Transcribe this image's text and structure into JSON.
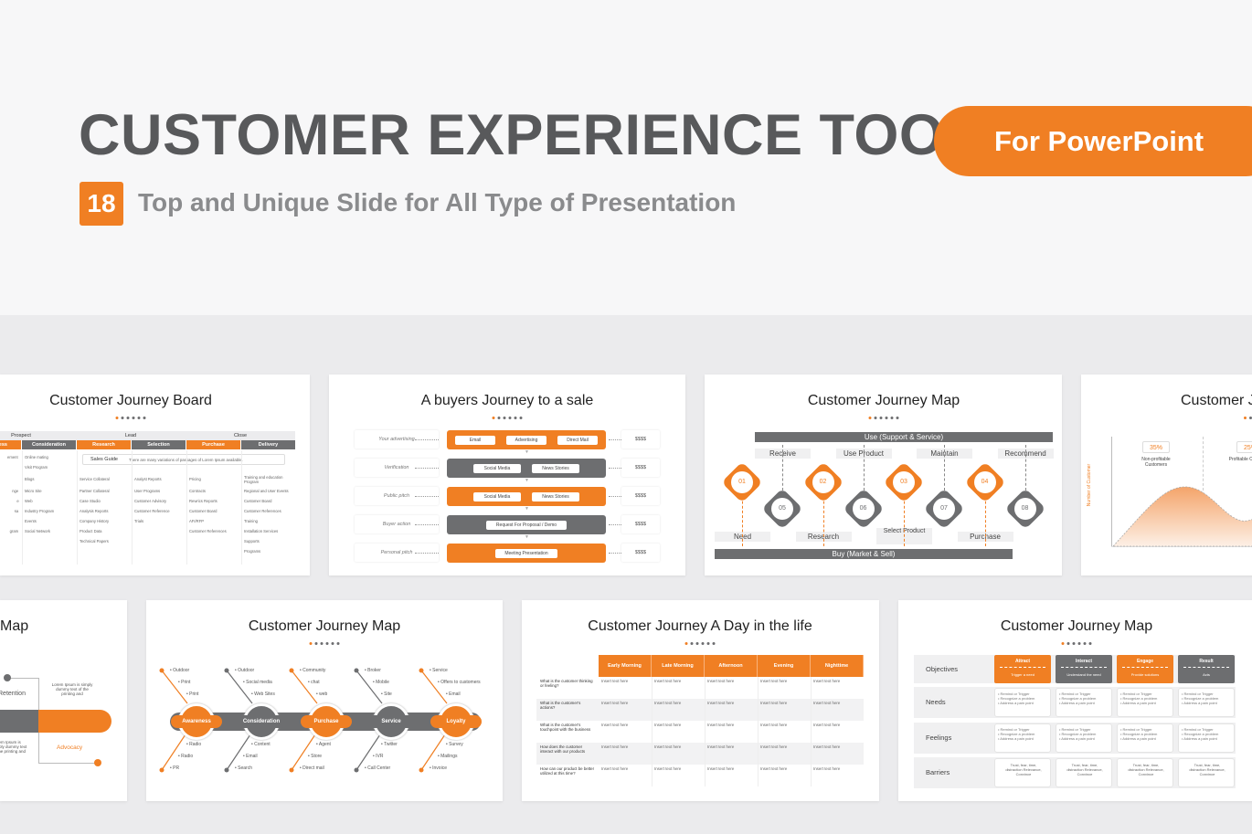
{
  "header": {
    "title": "CUSTOMER EXPERIENCE TOOL",
    "platform": "For PowerPoint",
    "count": "18",
    "subtitle": "Top and Unique Slide for All Type of Presentation"
  },
  "colors": {
    "accent": "#f07f23",
    "gray": "#6d6e70",
    "light": "#ececee"
  },
  "board": {
    "title": "Customer Journey Board",
    "phases": [
      "Prospect",
      "Lead",
      "Close"
    ],
    "stages": [
      "Awareness",
      "Consideration",
      "Research",
      "Selection",
      "Purchase",
      "Delivery"
    ],
    "guide_label": "Sales Guide",
    "guide_text": "There are many variations of passages of Lorem Ipsum available.",
    "columns": [
      [
        "ement",
        "",
        "",
        "nge",
        "e",
        "sa",
        "",
        "gram"
      ],
      [
        "Online mating",
        "Visit Program",
        "Blogs",
        "Micro Site",
        "Web",
        "Industry Program",
        "Events",
        "Social Network"
      ],
      [
        "Service Collateral",
        "Partner Collateral",
        "Case Studio",
        "Analysis Reports",
        "Company History",
        "Product Data",
        "Technical Papers"
      ],
      [
        "Analyst Reports",
        "User Programs",
        "Customer Advisory",
        "Customer Reference",
        "Trials"
      ],
      [
        "Pricing",
        "Contracts",
        "Rewrics Reports",
        "Customer Board",
        "AFI/RFP",
        "Customer References"
      ],
      [
        "Training and education Program",
        "Regional and User Events",
        "Customer Board",
        "Customer References",
        "Training",
        "Installation Services",
        "Supports",
        "Programs"
      ]
    ]
  },
  "buyers": {
    "title": "A buyers Journey to a sale",
    "rows": [
      {
        "label": "Your advertising",
        "items": [
          "Email",
          "Advertising",
          "Direct Mail"
        ],
        "value": "$$$$",
        "color": "orange"
      },
      {
        "label": "Verification",
        "items": [
          "Social Media",
          "News Stories"
        ],
        "value": "$$$$",
        "color": "gray"
      },
      {
        "label": "Public pitch",
        "items": [
          "Social Media",
          "News Stories"
        ],
        "value": "$$$$",
        "color": "orange"
      },
      {
        "label": "Buyer action",
        "items": [
          "Request For Proposal / Demo"
        ],
        "value": "$$$$",
        "color": "gray"
      },
      {
        "label": "Personal pitch",
        "items": [
          "Meeting Presentation"
        ],
        "value": "$$$$",
        "color": "orange"
      }
    ]
  },
  "map": {
    "title": "Customer Journey Map",
    "top_bar": "Use (Support & Service)",
    "bottom_bar": "Buy (Market & Sell)",
    "top_labels": [
      "Receive",
      "Use Product",
      "Maintain",
      "Recommend"
    ],
    "bottom_labels": [
      "Need",
      "Research",
      "Select Product",
      "Purchase"
    ],
    "orange_steps": [
      "01",
      "02",
      "03",
      "04"
    ],
    "gray_steps": [
      "05",
      "06",
      "07",
      "08"
    ]
  },
  "curve": {
    "title": "Customer Journey",
    "y_label": "Number of Customer",
    "stats": [
      {
        "value": "35%",
        "label": "Non-profitable Customers"
      },
      {
        "value": "25%",
        "label": "Profitable Customers"
      }
    ]
  },
  "partial_map": {
    "title": "Map",
    "stage1": "Retention",
    "stage2": "Advocacy",
    "text1": "Lorem Ipsum is simply dummy text of the printing and",
    "text2": "Lorem Ipsum is simply dummy text of the printing and"
  },
  "fishbone": {
    "title": "Customer Journey Map",
    "stages": [
      {
        "name": "Awareness",
        "top": [
          "Outdoor",
          "Print",
          "Print"
        ],
        "bottom": [
          "Radio",
          "Radio",
          "PR"
        ]
      },
      {
        "name": "Consideration",
        "top": [
          "Outdoor",
          "Social media",
          "Web Sites"
        ],
        "bottom": [
          "Content",
          "Email",
          "Search"
        ]
      },
      {
        "name": "Purchase",
        "top": [
          "Community",
          "chat",
          "web"
        ],
        "bottom": [
          "Agent",
          "Store",
          "Direct mail"
        ]
      },
      {
        "name": "Service",
        "top": [
          "Broker",
          "Mobile",
          "Site"
        ],
        "bottom": [
          "Twitter",
          "IVR",
          "Call Center"
        ]
      },
      {
        "name": "Loyalty",
        "top": [
          "Service",
          "Offers to customers",
          "Email"
        ],
        "bottom": [
          "Survey",
          "Mailings",
          "Invoice"
        ]
      }
    ]
  },
  "day": {
    "title": "Customer Journey A Day in the life",
    "columns": [
      "Early Morning",
      "Late Morning",
      "Afternoon",
      "Evening",
      "Nighttime"
    ],
    "questions": [
      "What is the customer thinking or feeling?",
      "What is the customer's actions?",
      "What is the customer's touchpoint with the business",
      "How does the customer interact with our products",
      "How can our product be better utilized at this time?"
    ],
    "cell": "Insert text here"
  },
  "matrix": {
    "title": "Customer Journey Map",
    "rows": [
      "Objectives",
      "Needs",
      "Feelings",
      "Barriers"
    ],
    "objectives": [
      {
        "name": "Attract",
        "desc": "Trigger a need",
        "color": "orange"
      },
      {
        "name": "Interact",
        "desc": "Understand the need",
        "color": "gray"
      },
      {
        "name": "Engage",
        "desc": "Provide solutions",
        "color": "orange"
      },
      {
        "name": "Result",
        "desc": "Acts",
        "color": "gray"
      }
    ],
    "bullets": [
      "Remind or Trigger",
      "Recognize a problem",
      "Address a pain point"
    ],
    "barriers": "Trust, fear, time, distraction Relevance, Convince"
  }
}
